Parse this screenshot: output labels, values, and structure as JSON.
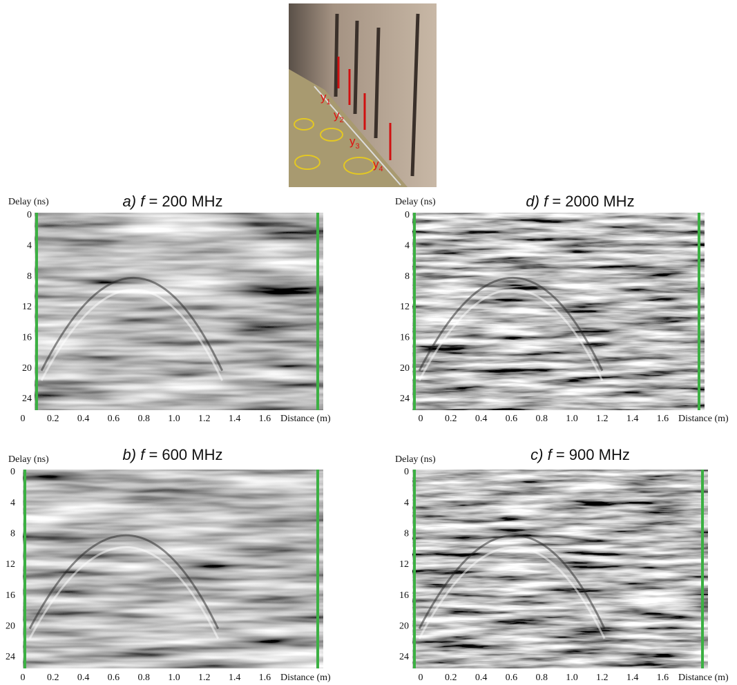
{
  "photo": {
    "labels": [
      {
        "base": "y",
        "sub": "1"
      },
      {
        "base": "y",
        "sub": "2"
      },
      {
        "base": "y",
        "sub": "3"
      },
      {
        "base": "y",
        "sub": "4"
      }
    ]
  },
  "panels": [
    {
      "letter": "a)",
      "variable": "f",
      "rest": "= 200 MHz",
      "y_label": "Delay (ns)",
      "x_label": "Distance (m)",
      "yticks": [
        "0",
        "4",
        "8",
        "12",
        "16",
        "20",
        "24"
      ],
      "xticks": [
        "0",
        "0.2",
        "0.4",
        "0.6",
        "0.8",
        "1.0",
        "1.2",
        "1.4",
        "1.6"
      ]
    },
    {
      "letter": "d)",
      "variable": "f",
      "rest": "= 2000 MHz",
      "y_label": "Delay (ns)",
      "x_label": "Distance (m)",
      "yticks": [
        "0",
        "4",
        "8",
        "12",
        "16",
        "20",
        "24"
      ],
      "xticks": [
        "0",
        "0.2",
        "0.4",
        "0.6",
        "0.8",
        "1.0",
        "1.2",
        "1.4",
        "1.6"
      ]
    },
    {
      "letter": "b)",
      "variable": "f",
      "rest": "= 600 MHz",
      "y_label": "Delay (ns)",
      "x_label": "Distance (m)",
      "yticks": [
        "0",
        "4",
        "8",
        "12",
        "16",
        "20",
        "24"
      ],
      "xticks": [
        "0",
        "0.2",
        "0.4",
        "0.6",
        "0.8",
        "1.0",
        "1.2",
        "1.4",
        "1.6"
      ]
    },
    {
      "letter": "c)",
      "variable": "f",
      "rest": "= 900 MHz",
      "y_label": "Delay (ns)",
      "x_label": "Distance (m)",
      "yticks": [
        "0",
        "4",
        "8",
        "12",
        "16",
        "20",
        "24"
      ],
      "xticks": [
        "0",
        "0.2",
        "0.4",
        "0.6",
        "0.8",
        "1.0",
        "1.2",
        "1.4",
        "1.6"
      ]
    }
  ]
}
